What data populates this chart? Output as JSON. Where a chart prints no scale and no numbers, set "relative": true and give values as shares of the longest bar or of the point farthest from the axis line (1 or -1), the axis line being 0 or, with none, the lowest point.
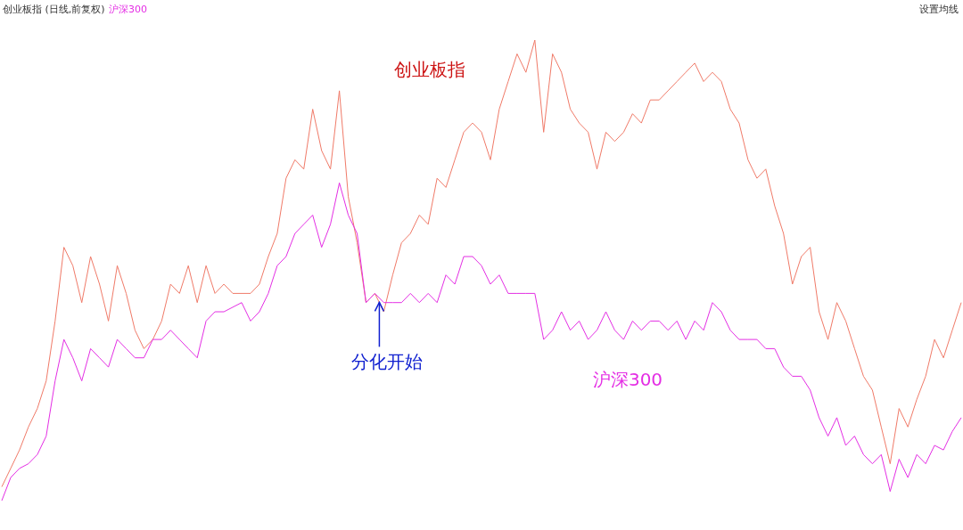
{
  "chart_data": {
    "type": "line",
    "relative": true,
    "title": "创业板指 (日线,前复权)",
    "subtitle": "沪深300",
    "categories": [
      null,
      null,
      null,
      null,
      null,
      null,
      null,
      null,
      null,
      null,
      null,
      null,
      null,
      null,
      null,
      null,
      null,
      null,
      null,
      null,
      null,
      null,
      null,
      null,
      null,
      null,
      null,
      null,
      null,
      null,
      null,
      null,
      null,
      null,
      null,
      null,
      null,
      null,
      null,
      null,
      null,
      null,
      null,
      null,
      null,
      null,
      null,
      null,
      null,
      null,
      null,
      null,
      null,
      null,
      null,
      null,
      null,
      null,
      null,
      null,
      null,
      null,
      null,
      null,
      null,
      null,
      null,
      null,
      null,
      null,
      null,
      null,
      null,
      null,
      null,
      null,
      null,
      null,
      null,
      null,
      null,
      null,
      null,
      null,
      null,
      null,
      null,
      null,
      null,
      null,
      null,
      null,
      null,
      null,
      null,
      null,
      null,
      null,
      null,
      null,
      null,
      null,
      null,
      null,
      null,
      null,
      null,
      null,
      null
    ],
    "series": [
      {
        "name": "创业板指",
        "color": "#f07a68",
        "values": [
          0.03,
          0.07,
          0.11,
          0.16,
          0.2,
          0.26,
          0.39,
          0.55,
          0.51,
          0.43,
          0.53,
          0.47,
          0.39,
          0.51,
          0.45,
          0.37,
          0.33,
          0.35,
          0.39,
          0.47,
          0.45,
          0.51,
          0.43,
          0.51,
          0.45,
          0.47,
          0.45,
          0.45,
          0.45,
          0.47,
          0.53,
          0.58,
          0.7,
          0.74,
          0.72,
          0.85,
          0.76,
          0.72,
          0.89,
          0.66,
          0.56,
          0.43,
          0.45,
          0.41,
          0.49,
          0.56,
          0.58,
          0.62,
          0.6,
          0.7,
          0.68,
          0.74,
          0.8,
          0.82,
          0.8,
          0.74,
          0.85,
          0.91,
          0.97,
          0.93,
          1.0,
          0.8,
          0.97,
          0.93,
          0.85,
          0.82,
          0.8,
          0.72,
          0.8,
          0.78,
          0.8,
          0.84,
          0.82,
          0.87,
          0.87,
          0.89,
          0.91,
          0.93,
          0.95,
          0.91,
          0.93,
          0.91,
          0.85,
          0.82,
          0.74,
          0.7,
          0.72,
          0.64,
          0.58,
          0.47,
          0.53,
          0.55,
          0.41,
          0.35,
          0.43,
          0.39,
          0.33,
          0.27,
          0.24,
          0.16,
          0.08,
          0.2,
          0.16,
          0.22,
          0.27,
          0.35,
          0.31,
          0.37,
          0.43
        ]
      },
      {
        "name": "沪深300",
        "color": "#e42ee4",
        "values": [
          0,
          0.05,
          0.07,
          0.08,
          0.1,
          0.14,
          0.26,
          0.35,
          0.31,
          0.26,
          0.33,
          0.31,
          0.29,
          0.35,
          0.33,
          0.31,
          0.31,
          0.35,
          0.35,
          0.37,
          0.35,
          0.33,
          0.31,
          0.39,
          0.41,
          0.41,
          0.42,
          0.43,
          0.39,
          0.41,
          0.45,
          0.51,
          0.53,
          0.58,
          0.6,
          0.62,
          0.55,
          0.6,
          0.69,
          0.62,
          0.58,
          0.43,
          0.45,
          0.43,
          0.43,
          0.43,
          0.45,
          0.43,
          0.45,
          0.43,
          0.49,
          0.47,
          0.53,
          0.53,
          0.51,
          0.47,
          0.49,
          0.45,
          0.45,
          0.45,
          0.45,
          0.35,
          0.37,
          0.41,
          0.37,
          0.39,
          0.35,
          0.37,
          0.41,
          0.37,
          0.35,
          0.39,
          0.37,
          0.39,
          0.39,
          0.37,
          0.39,
          0.35,
          0.39,
          0.37,
          0.43,
          0.41,
          0.37,
          0.35,
          0.35,
          0.35,
          0.33,
          0.33,
          0.29,
          0.27,
          0.27,
          0.24,
          0.18,
          0.14,
          0.18,
          0.12,
          0.14,
          0.1,
          0.08,
          0.1,
          0.02,
          0.09,
          0.05,
          0.1,
          0.08,
          0.12,
          0.11,
          0.15,
          0.18
        ]
      }
    ],
    "annotations": [
      "设置均线",
      "分化开始"
    ],
    "legend": false
  }
}
